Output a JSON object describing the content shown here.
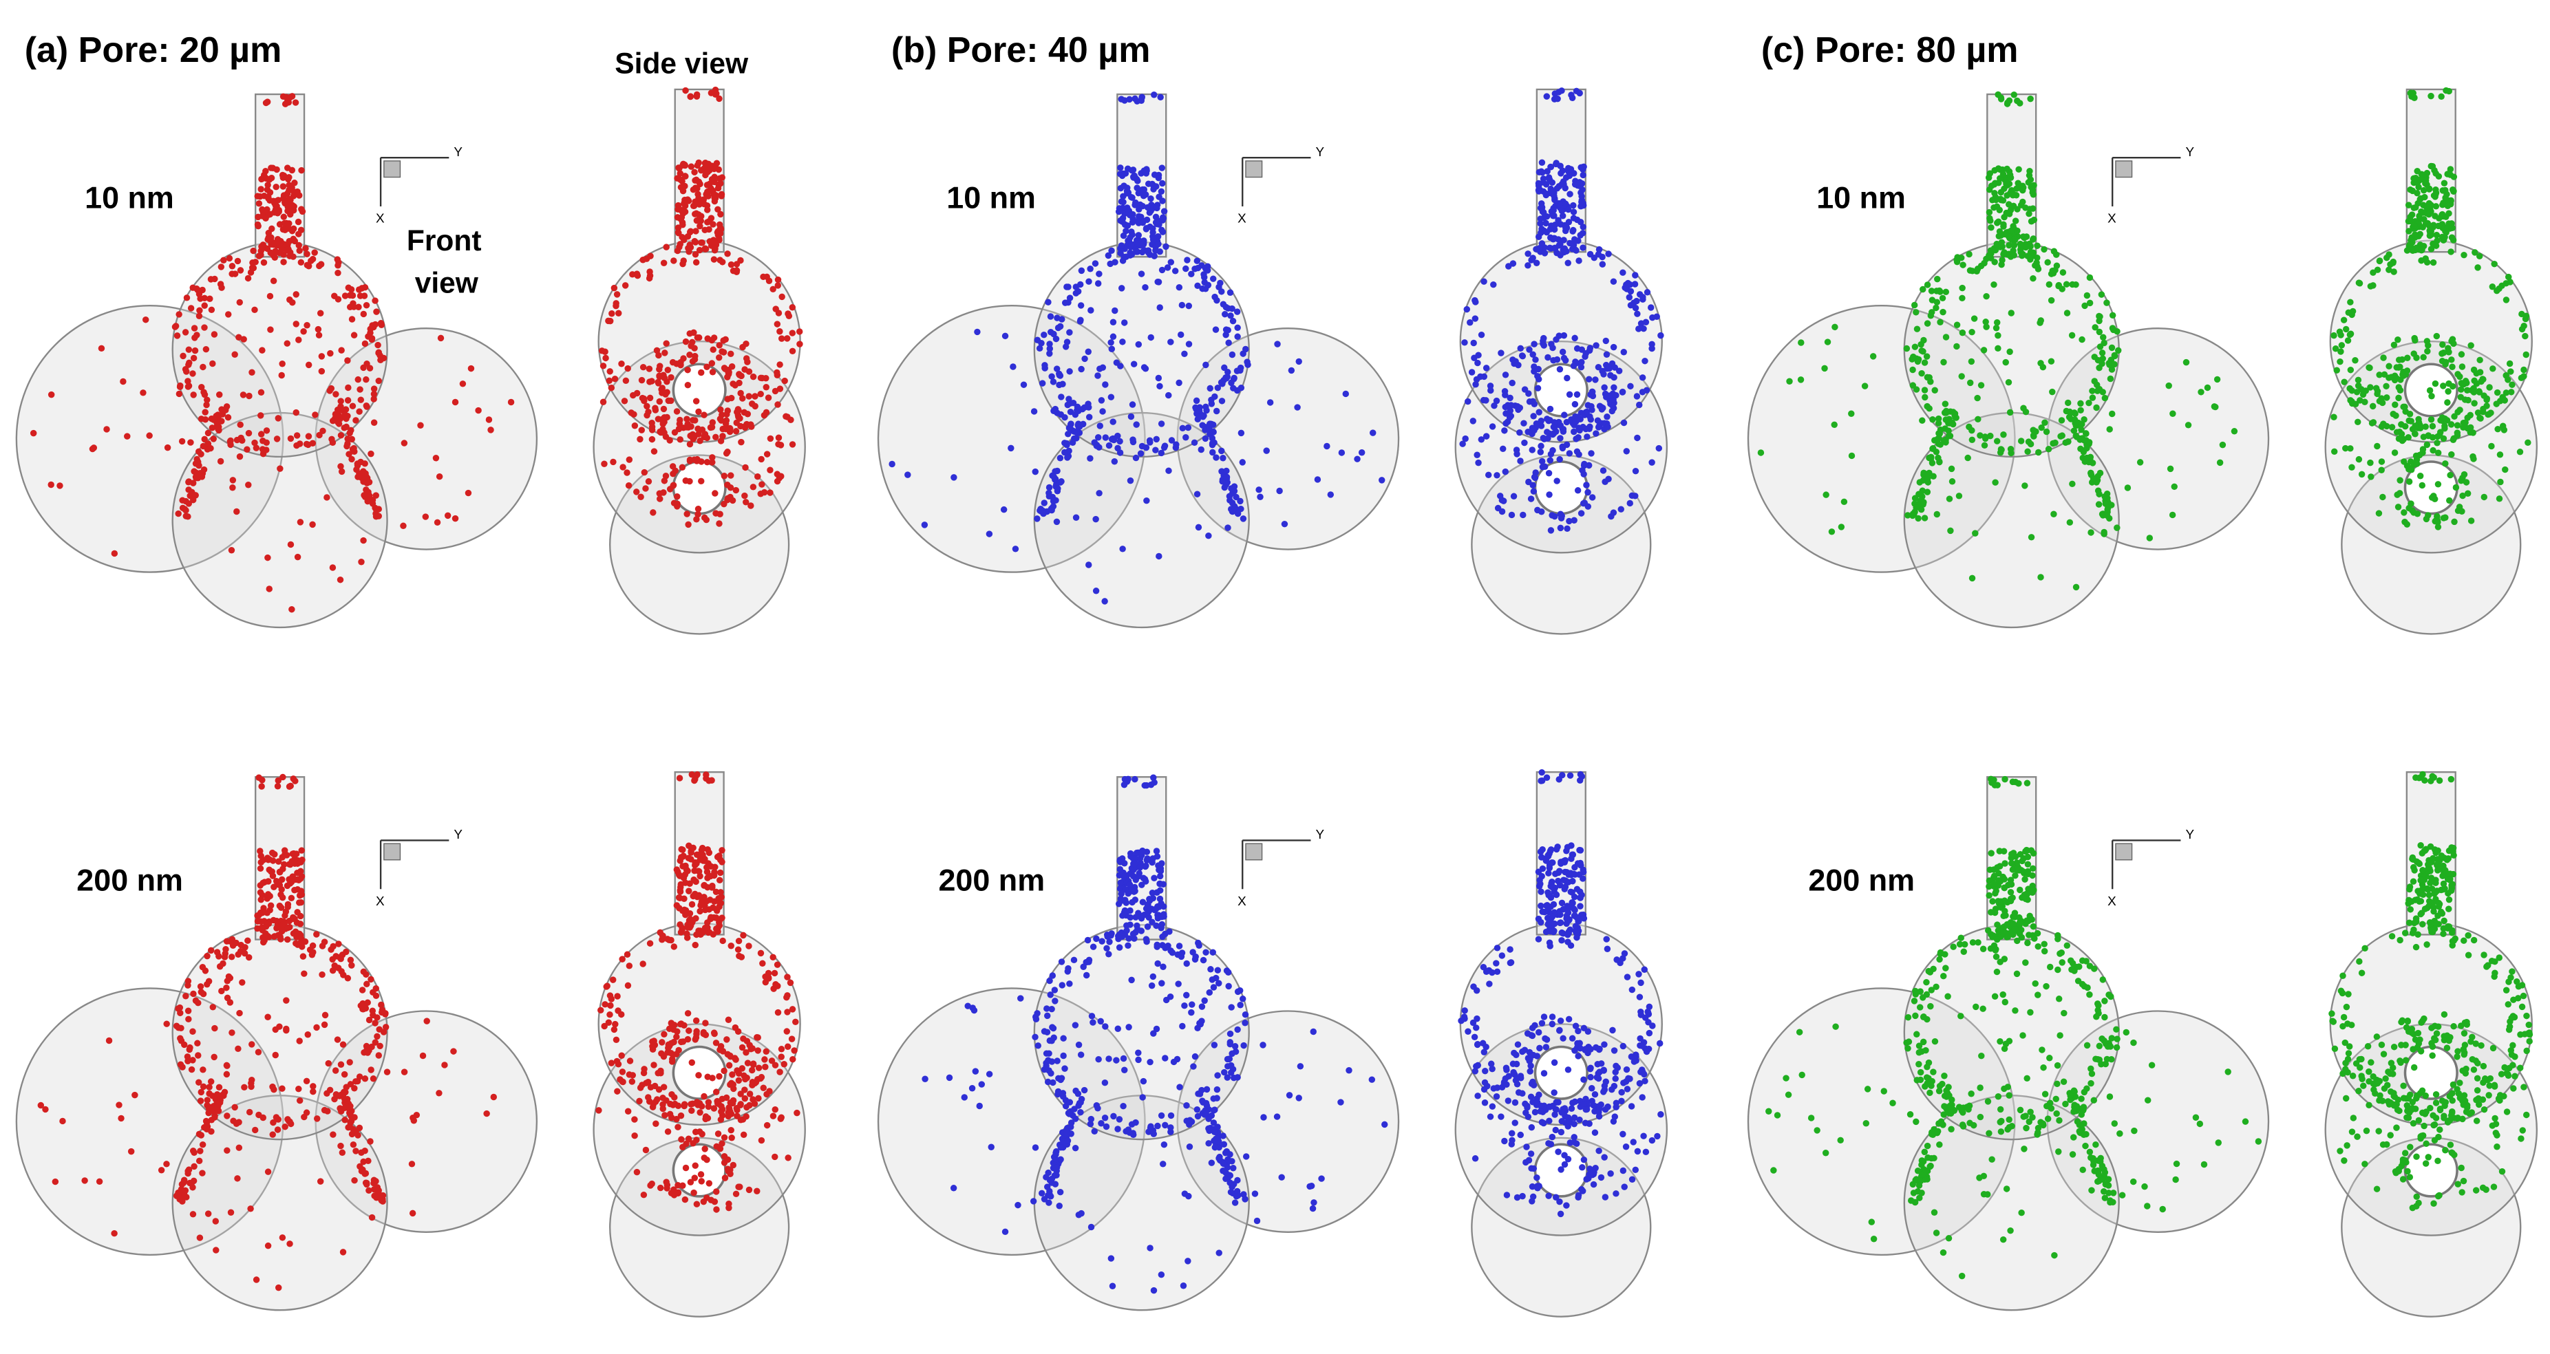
{
  "panels": [
    {
      "title": "(a) Pore: 20 µm",
      "color": "#d42020",
      "rows": [
        {
          "label": "10 nm"
        },
        {
          "label": "200 nm"
        }
      ]
    },
    {
      "title": "(b) Pore: 40 µm",
      "color": "#2f2fd6",
      "rows": [
        {
          "label": "10 nm"
        },
        {
          "label": "200 nm"
        }
      ]
    },
    {
      "title": "(c) Pore: 80 µm",
      "color": "#1fae1f",
      "rows": [
        {
          "label": "10 nm"
        },
        {
          "label": "200 nm"
        }
      ]
    }
  ],
  "annotations": {
    "side_view": "Side view",
    "front_view": [
      "Front",
      "view"
    ]
  },
  "axis_labels": {
    "x": "X",
    "y": "Y"
  }
}
